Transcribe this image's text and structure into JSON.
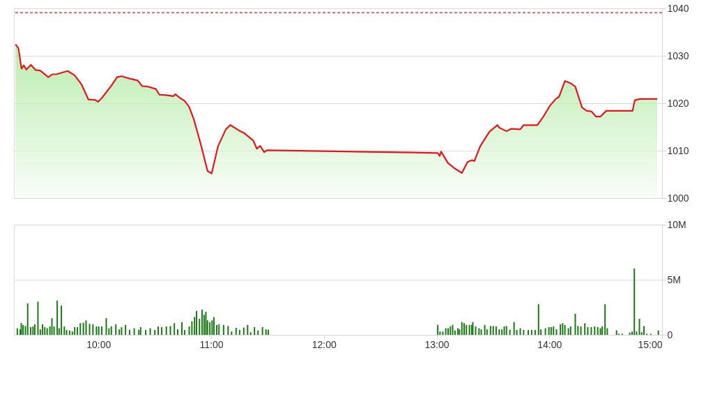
{
  "chart_data": [
    {
      "type": "area",
      "x": [
        9.264,
        9.29,
        9.317,
        9.337,
        9.36,
        9.4,
        9.443,
        9.483,
        9.555,
        9.59,
        9.626,
        9.727,
        9.788,
        9.849,
        9.91,
        9.971,
        9.996,
        10.03,
        10.114,
        10.165,
        10.205,
        10.276,
        10.348,
        10.388,
        10.439,
        10.51,
        10.54,
        10.6,
        10.663,
        10.683,
        10.724,
        10.764,
        10.805,
        10.846,
        10.907,
        10.968,
        11.004,
        11.06,
        11.13,
        11.17,
        11.25,
        11.293,
        11.374,
        11.405,
        11.435,
        11.47,
        11.496,
        12.787,
        13.01,
        13.027,
        13.04,
        13.1,
        13.152,
        13.224,
        13.274,
        13.315,
        13.335,
        13.386,
        13.468,
        13.539,
        13.559,
        13.62,
        13.66,
        13.742,
        13.772,
        13.843,
        13.894,
        13.945,
        14.006,
        14.057,
        14.087,
        14.138,
        14.189,
        14.23,
        14.29,
        14.331,
        14.372,
        14.413,
        14.454,
        14.505,
        14.738,
        14.758,
        14.799,
        14.957
      ],
      "series": [
        {
          "color": "#e8141c",
          "values": [
            1032.4,
            1031.6,
            1027.3,
            1028.0,
            1027.1,
            1028.1,
            1027.0,
            1026.9,
            1025.5,
            1026.1,
            1026.1,
            1026.8,
            1025.9,
            1024.0,
            1020.8,
            1020.7,
            1020.3,
            1021.1,
            1023.7,
            1025.5,
            1025.7,
            1025.2,
            1024.8,
            1023.6,
            1023.5,
            1023.0,
            1021.8,
            1021.7,
            1021.5,
            1021.9,
            1021.1,
            1020.5,
            1019.2,
            1016.6,
            1011.4,
            1005.7,
            1005.2,
            1010.9,
            1014.5,
            1015.4,
            1014.2,
            1013.7,
            1012.1,
            1010.4,
            1011.0,
            1009.7,
            1010.1,
            1009.6,
            1009.5,
            1008.9,
            1009.8,
            1007.4,
            1006.4,
            1005.3,
            1007.6,
            1008.0,
            1007.8,
            1010.9,
            1014.0,
            1015.4,
            1014.8,
            1014.1,
            1014.6,
            1014.5,
            1015.4,
            1015.4,
            1015.4,
            1017.1,
            1019.5,
            1020.9,
            1021.4,
            1024.7,
            1024.2,
            1023.5,
            1019.1,
            1018.4,
            1018.3,
            1017.2,
            1017.2,
            1018.4,
            1018.4,
            1020.6,
            1020.9,
            1020.9
          ]
        }
      ],
      "xlim": [
        9.25,
        15
      ],
      "ylim": [
        1000,
        1040
      ],
      "yticks": [
        1000,
        1010,
        1020,
        1030,
        1040
      ],
      "grid": "y",
      "tick_labels": "y",
      "ref_lines": [
        {
          "axis": "y",
          "value": 1039.1,
          "color": "#e8141c",
          "line_style": "dashed"
        }
      ]
    },
    {
      "type": "bar",
      "x": [
        9.28,
        9.305,
        9.315,
        9.331,
        9.352,
        9.372,
        9.398,
        9.419,
        9.435,
        9.463,
        9.484,
        9.504,
        9.524,
        9.545,
        9.569,
        9.587,
        9.606,
        9.634,
        9.651,
        9.671,
        9.697,
        9.717,
        9.744,
        9.768,
        9.789,
        9.813,
        9.839,
        9.866,
        9.89,
        9.921,
        9.951,
        9.982,
        10.002,
        10.029,
        10.069,
        10.093,
        10.114,
        10.154,
        10.185,
        10.205,
        10.24,
        10.276,
        10.317,
        10.358,
        10.374,
        10.419,
        10.459,
        10.5,
        10.53,
        10.561,
        10.602,
        10.638,
        10.673,
        10.703,
        10.74,
        10.764,
        10.805,
        10.829,
        10.852,
        10.87,
        10.896,
        10.919,
        10.937,
        10.953,
        10.967,
        10.988,
        11.008,
        11.024,
        11.049,
        11.069,
        11.11,
        11.15,
        11.181,
        11.221,
        11.252,
        11.289,
        11.323,
        11.35,
        11.384,
        11.415,
        11.455,
        11.486,
        11.506,
        13.01,
        13.03,
        13.055,
        13.081,
        13.102,
        13.122,
        13.142,
        13.163,
        13.189,
        13.203,
        13.224,
        13.244,
        13.264,
        13.291,
        13.311,
        13.321,
        13.346,
        13.376,
        13.396,
        13.427,
        13.447,
        13.478,
        13.502,
        13.528,
        13.555,
        13.579,
        13.6,
        13.62,
        13.65,
        13.687,
        13.711,
        13.742,
        13.772,
        13.813,
        13.843,
        13.874,
        13.904,
        13.925,
        13.965,
        13.996,
        14.016,
        14.037,
        14.063,
        14.098,
        14.118,
        14.138,
        14.169,
        14.189,
        14.23,
        14.254,
        14.28,
        14.315,
        14.341,
        14.372,
        14.402,
        14.429,
        14.453,
        14.469,
        14.494,
        14.514,
        14.596,
        14.616,
        14.646,
        14.713,
        14.734,
        14.754,
        14.774,
        14.799,
        14.819,
        14.839,
        14.864,
        14.9,
        14.967
      ],
      "series": [
        {
          "color": "#1a7a12",
          "values": [
            0.6,
            0.5,
            1.07,
            0.9,
            0.8,
            2.85,
            0.7,
            0.76,
            0.96,
            3.01,
            0.5,
            0.96,
            0.7,
            0.6,
            0.76,
            1.51,
            0.76,
            3.11,
            0.6,
            2.65,
            0.76,
            0.44,
            0.4,
            0.3,
            0.7,
            0.7,
            1.06,
            1.1,
            1.31,
            1.0,
            0.96,
            0.76,
            0.76,
            0.76,
            1.51,
            0.6,
            0.76,
            0.96,
            0.5,
            0.7,
            0.9,
            0.46,
            0.6,
            0.46,
            0.7,
            0.44,
            0.6,
            0.44,
            0.76,
            0.7,
            0.76,
            0.8,
            1.06,
            0.5,
            1.14,
            0.44,
            0.76,
            1.24,
            1.61,
            2.17,
            1.45,
            2.29,
            1.81,
            2.09,
            1.31,
            1.14,
            1.31,
            1.61,
            0.9,
            0.96,
            0.9,
            0.8,
            0.3,
            0.64,
            0.46,
            0.66,
            0.9,
            0.24,
            0.7,
            0.4,
            0.7,
            0.5,
            0.46,
            0.9,
            0.3,
            0.3,
            0.6,
            0.6,
            0.76,
            0.9,
            0.4,
            0.6,
            0.5,
            1.16,
            1.06,
            0.9,
            0.9,
            0.9,
            1.16,
            0.76,
            0.6,
            0.5,
            0.9,
            0.5,
            0.8,
            0.8,
            0.76,
            0.5,
            0.5,
            0.76,
            0.8,
            0.46,
            1.16,
            0.44,
            0.6,
            0.44,
            0.44,
            0.44,
            0.44,
            2.77,
            0.5,
            0.6,
            0.7,
            0.7,
            0.76,
            0.5,
            0.96,
            1.06,
            0.9,
            0.6,
            0.76,
            1.91,
            0.8,
            0.76,
            1.06,
            0.7,
            0.7,
            0.76,
            0.7,
            0.6,
            0.76,
            2.77,
            0.6,
            0.4,
            0.1,
            0.1,
            0.2,
            0.3,
            6.02,
            0.3,
            1.45,
            0.24,
            0.8,
            0.1,
            0.1,
            0.4
          ]
        }
      ],
      "xlim": [
        9.25,
        15
      ],
      "xticks": [
        {
          "value": 10,
          "label": "10:00"
        },
        {
          "value": 11,
          "label": "11:00"
        },
        {
          "value": 12,
          "label": "12:00"
        },
        {
          "value": 13,
          "label": "13:00"
        },
        {
          "value": 14,
          "label": "14:00"
        },
        {
          "value": 15,
          "label": "15:00"
        }
      ],
      "ylim": [
        0,
        10
      ],
      "yticks": [
        {
          "value": 0,
          "label": "0"
        },
        {
          "value": 5,
          "label": "5M"
        },
        {
          "value": 10,
          "label": "10M"
        }
      ],
      "grid": "y"
    }
  ]
}
